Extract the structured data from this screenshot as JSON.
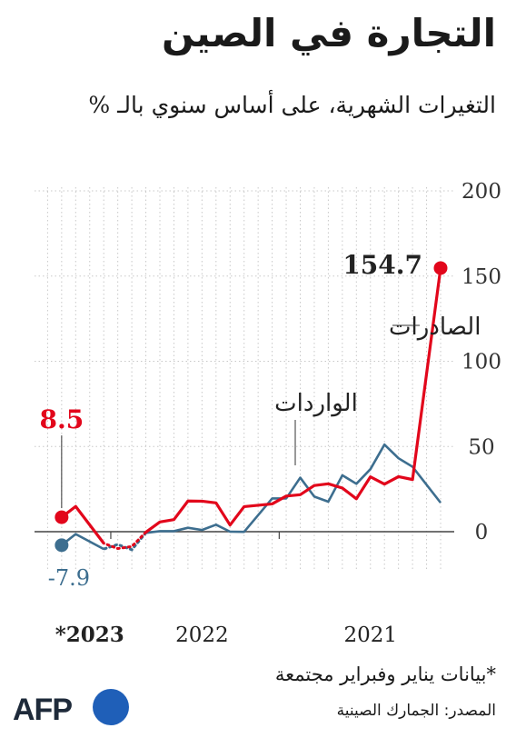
{
  "header": {
    "title": "التجارة في الصين",
    "subtitle": "التغيرات الشهرية، على أساس سنوي بالـ %"
  },
  "footer": {
    "note": "*بيانات يناير وفبراير مجتمعة",
    "source": "المصدر: الجمارك الصينية",
    "logo_text": "AFP"
  },
  "colors": {
    "exports": "#e2061b",
    "imports": "#3d6e8f",
    "grid": "#c8c8c8",
    "axis": "#444444",
    "logo_dot": "#1f5fb8"
  },
  "chart_data": {
    "type": "line",
    "x_axis_direction": "right-to-left",
    "ylim": [
      -20,
      200
    ],
    "yticks": [
      0,
      50,
      100,
      150,
      200
    ],
    "x_labels": [
      "2021",
      "2022",
      "*2023"
    ],
    "months": [
      "2021-01",
      "2021-03",
      "2021-04",
      "2021-05",
      "2021-06",
      "2021-07",
      "2021-08",
      "2021-09",
      "2021-10",
      "2021-11",
      "2021-12",
      "2022-01",
      "2022-03",
      "2022-04",
      "2022-05",
      "2022-06",
      "2022-07",
      "2022-08",
      "2022-09",
      "2022-10",
      "2022-11",
      "2022-12",
      "2023-01",
      "2023-03",
      "2023-04"
    ],
    "series": [
      {
        "name": "الصادرات",
        "values": [
          154.7,
          30.6,
          32.3,
          27.9,
          32.2,
          19.3,
          25.6,
          28.1,
          27.1,
          21.7,
          20.9,
          16.3,
          14.7,
          3.9,
          16.9,
          17.9,
          18.0,
          7.1,
          5.7,
          -0.3,
          -8.7,
          -9.9,
          -6.8,
          14.8,
          8.5
        ],
        "dotted_from": "2022-10",
        "dotted_to": "2023-01",
        "callout": 154.7
      },
      {
        "name": "الواردات",
        "values": [
          17.0,
          38.1,
          43.1,
          51.1,
          36.7,
          28.1,
          33.1,
          17.6,
          20.6,
          31.7,
          19.5,
          19.5,
          -0.1,
          0.0,
          4.1,
          1.0,
          2.3,
          0.3,
          0.3,
          -0.7,
          -10.6,
          -7.5,
          -10.2,
          -1.4,
          -7.9
        ],
        "dotted_from": "2022-10",
        "dotted_to": "2023-01"
      }
    ],
    "annotations": [
      {
        "series": "الصادرات",
        "text": "154.7",
        "at": "2021-01"
      },
      {
        "series": "الصادرات",
        "text": "8.5",
        "at": "2023-04"
      },
      {
        "series": "الواردات",
        "text": "-7.9",
        "at": "2023-04"
      }
    ],
    "grid": true,
    "legend": "inline-labels"
  }
}
